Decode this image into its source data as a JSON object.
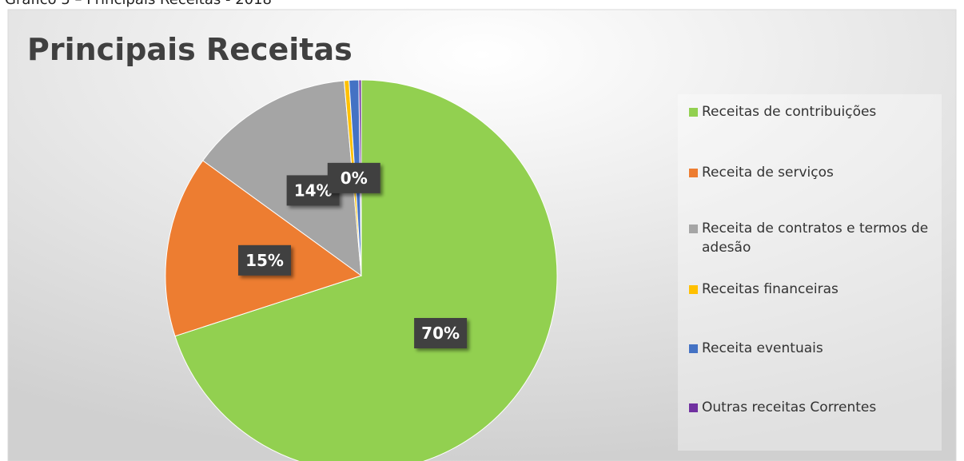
{
  "caption": "Gráfico 5 – Principais Receitas - 2018",
  "chart_data": {
    "type": "pie",
    "title": "Principais Receitas",
    "categories": [
      "Receitas de contribuições",
      "Receita de serviços",
      "Receita de contratos e termos de adesão",
      "Receitas financeiras",
      "Receita eventuais",
      "Outras receitas Correntes"
    ],
    "values": [
      70,
      15,
      13.6,
      0.4,
      0.8,
      0.2
    ],
    "value_labels": [
      "70%",
      "15%",
      "14%",
      "0%",
      null,
      null
    ],
    "colors": [
      "#92d050",
      "#ed7d31",
      "#a5a5a5",
      "#ffc000",
      "#4472c4",
      "#7030a0"
    ],
    "legend": "right"
  }
}
